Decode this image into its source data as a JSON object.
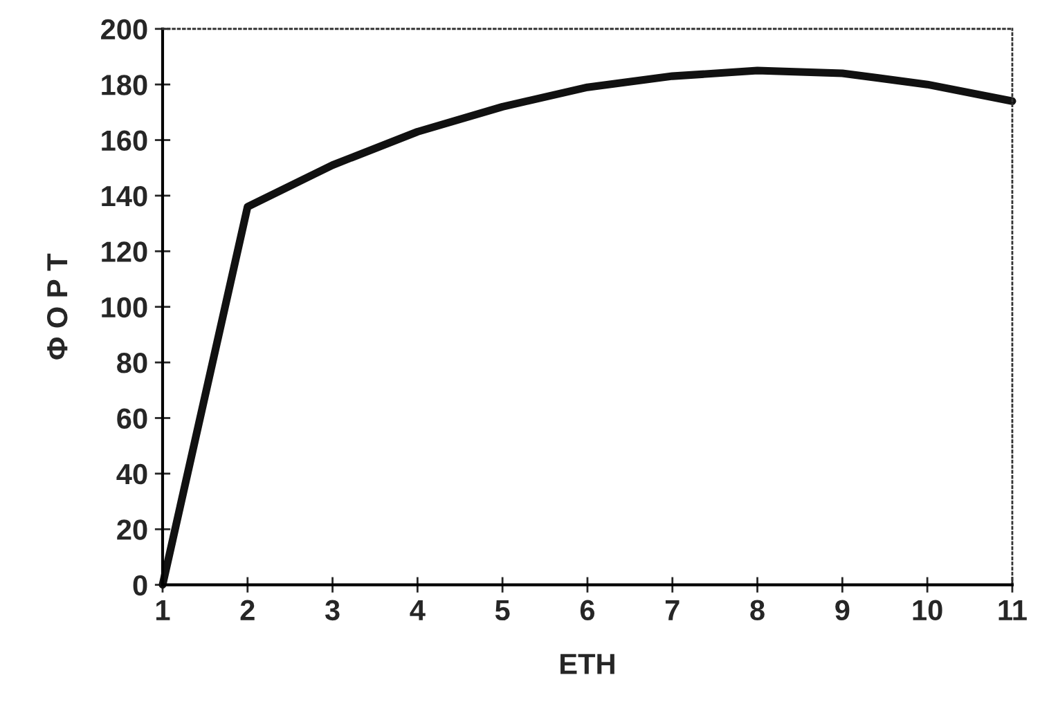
{
  "chart_data": {
    "type": "line",
    "xlabel": "ΕΤΗ",
    "ylabel": "Φ Ο Ρ Τ",
    "x": [
      1,
      2,
      3,
      4,
      5,
      6,
      7,
      8,
      9,
      10,
      11
    ],
    "series": [
      {
        "color": "#111111",
        "values": [
          0,
          136,
          151,
          163,
          172,
          179,
          183,
          185,
          184,
          180,
          174
        ]
      }
    ],
    "xlim": [
      1,
      11
    ],
    "xticks": [
      1,
      2,
      3,
      4,
      5,
      6,
      7,
      8,
      9,
      10,
      11
    ],
    "ylim": [
      0,
      200
    ],
    "yticks": [
      0,
      20,
      40,
      60,
      80,
      100,
      120,
      140,
      160,
      180,
      200
    ],
    "marker": "none",
    "line_style": "solid"
  }
}
